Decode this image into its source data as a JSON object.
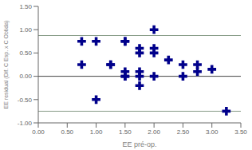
{
  "chart_data": {
    "type": "scatter",
    "xlabel": "EE pré-op.",
    "ylabel": "EE residual (Dif. C Esp. x C Obtida)",
    "x": [
      0.75,
      0.75,
      1.0,
      1.0,
      1.25,
      1.25,
      1.5,
      1.5,
      1.5,
      1.5,
      1.5,
      1.75,
      1.75,
      1.75,
      1.75,
      2.0,
      2.0,
      2.0,
      2.0,
      2.25,
      2.5,
      2.5,
      2.75,
      2.75,
      3.0,
      3.25,
      1.75
    ],
    "values": [
      0.75,
      0.25,
      0.75,
      -0.5,
      0.25,
      0.25,
      0.75,
      0.75,
      0.1,
      0.0,
      0.0,
      0.6,
      0.5,
      0.1,
      0.0,
      1.0,
      0.6,
      0.5,
      0.0,
      0.35,
      0.25,
      0.0,
      0.1,
      0.25,
      0.15,
      -0.75,
      -0.2
    ],
    "color": "#00008b",
    "marker": "plus",
    "xlim": [
      0.0,
      3.5
    ],
    "ylim": [
      -1.0,
      1.5
    ],
    "xticks": [
      {
        "value": 0.0,
        "label": "0.00"
      },
      {
        "value": 0.5,
        "label": "0.50"
      },
      {
        "value": 1.0,
        "label": "1.00"
      },
      {
        "value": 1.5,
        "label": "1.50"
      },
      {
        "value": 2.0,
        "label": "2.00"
      },
      {
        "value": 2.5,
        "label": "2.50"
      },
      {
        "value": 3.0,
        "label": "3.00"
      },
      {
        "value": 3.5,
        "label": "3.50"
      }
    ],
    "yticks": [
      {
        "value": -1.0,
        "label": "-1.00"
      },
      {
        "value": -0.5,
        "label": "-0.50"
      },
      {
        "value": 0.0,
        "label": "0.00"
      },
      {
        "value": 0.5,
        "label": "0.50"
      },
      {
        "value": 1.0,
        "label": "1.00"
      },
      {
        "value": 1.5,
        "label": "1.50"
      }
    ],
    "hlines": [
      {
        "y": 0.875,
        "color": "#8a9e8a"
      },
      {
        "y": -0.75,
        "color": "#8a9e8a"
      },
      {
        "y": 0.0,
        "color": "#444444"
      }
    ]
  }
}
